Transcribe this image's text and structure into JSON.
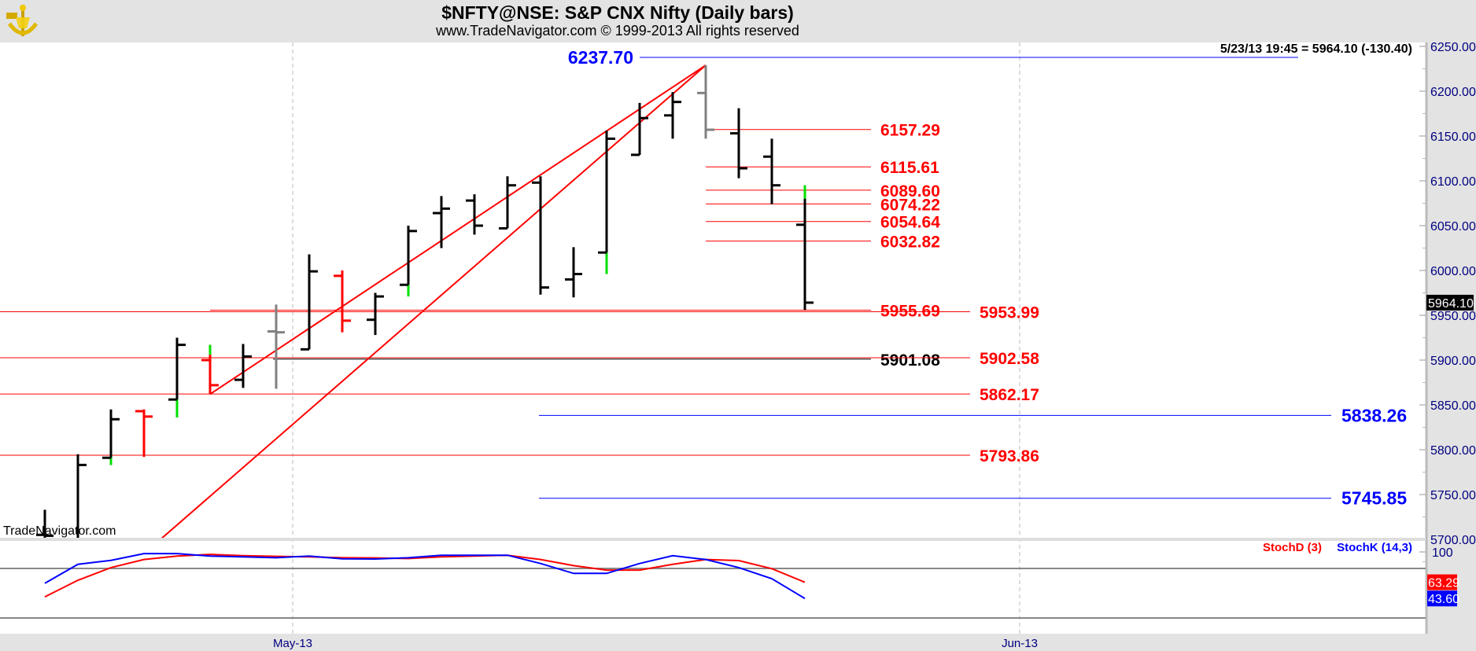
{
  "header": {
    "title": "$NFTY@NSE:  S&P CNX Nifty  (Daily bars)",
    "subtitle": "www.TradeNavigator.com © 1999-2013 All rights reserved",
    "logo_icon": "sextant-anchor-logo"
  },
  "info_readout": "5/23/13 19:45 = 5964.10 (-130.40)",
  "watermark": "TradeNavigator.com",
  "colors": {
    "up_bar": "#000000",
    "down_bar": "#ff0000",
    "neutral_bar": "#808080",
    "accent": "#00e000",
    "level_red": "#ff0000",
    "level_blue": "#0000ff",
    "axis_text": "#000080",
    "background": "#ffffff",
    "frame": "#e3e3e3"
  },
  "chart_data": [
    {
      "type": "ohlc",
      "title": "$NFTY@NSE:  S&P CNX Nifty  (Daily bars)",
      "ylim": [
        5690,
        6260
      ],
      "y_ticks": [
        "6250.00",
        "6200.00",
        "6150.00",
        "6100.00",
        "6050.00",
        "6000.00",
        "5950.00",
        "5900.00",
        "5850.00",
        "5800.00",
        "5750.00",
        "5700.00"
      ],
      "y_tick_values": [
        6250,
        6200,
        6150,
        6100,
        6050,
        6000,
        5950,
        5900,
        5850,
        5800,
        5750,
        5700
      ],
      "x_ticks": [
        {
          "label": "May-13",
          "at_bar": 7.5
        },
        {
          "label": "Jun-13",
          "at_bar": 29.5
        }
      ],
      "grid": "vertical dashed at month starts",
      "last_price_badge": "5964.10",
      "bars": [
        {
          "o": 5705,
          "h": 5733,
          "l": 5690,
          "c": 5704,
          "color": "up"
        },
        {
          "o": 5690,
          "h": 5795,
          "l": 5685,
          "c": 5783,
          "color": "up"
        },
        {
          "o": 5791,
          "h": 5845,
          "l": 5783,
          "c": 5834,
          "color": "up",
          "accent": [
            5783,
            5791
          ]
        },
        {
          "o": 5843,
          "h": 5845,
          "l": 5792,
          "c": 5837,
          "color": "down"
        },
        {
          "o": 5856,
          "h": 5925,
          "l": 5836,
          "c": 5917,
          "color": "up",
          "accent": [
            5836,
            5856
          ]
        },
        {
          "o": 5900,
          "h": 5917,
          "l": 5862,
          "c": 5872,
          "color": "down",
          "accent": [
            5906,
            5917
          ]
        },
        {
          "o": 5878,
          "h": 5918,
          "l": 5869,
          "c": 5904,
          "color": "up"
        },
        {
          "o": 5932,
          "h": 5962,
          "l": 5868,
          "c": 5931,
          "color": "neutral"
        },
        {
          "o": 5912,
          "h": 6018,
          "l": 5912,
          "c": 5999,
          "color": "up"
        },
        {
          "o": 5994,
          "h": 6000,
          "l": 5931,
          "c": 5944,
          "color": "down"
        },
        {
          "o": 5945,
          "h": 5975,
          "l": 5928,
          "c": 5971,
          "color": "up"
        },
        {
          "o": 5984,
          "h": 6050,
          "l": 5971,
          "c": 6044,
          "color": "up",
          "accent": [
            5971,
            5984
          ]
        },
        {
          "o": 6064,
          "h": 6083,
          "l": 6025,
          "c": 6069,
          "color": "up"
        },
        {
          "o": 6078,
          "h": 6085,
          "l": 6040,
          "c": 6050,
          "color": "up"
        },
        {
          "o": 6047,
          "h": 6105,
          "l": 6047,
          "c": 6095,
          "color": "up"
        },
        {
          "o": 6098,
          "h": 6105,
          "l": 5973,
          "c": 5981,
          "color": "up"
        },
        {
          "o": 5990,
          "h": 6026,
          "l": 5970,
          "c": 5996,
          "color": "up"
        },
        {
          "o": 6020,
          "h": 6156,
          "l": 5996,
          "c": 6147,
          "color": "up",
          "accent": [
            5996,
            6020
          ]
        },
        {
          "o": 6129,
          "h": 6187,
          "l": 6129,
          "c": 6170,
          "color": "up"
        },
        {
          "o": 6173,
          "h": 6199,
          "l": 6147,
          "c": 6188,
          "color": "up"
        },
        {
          "o": 6198,
          "h": 6229,
          "l": 6147,
          "c": 6157,
          "color": "neutral"
        },
        {
          "o": 6153,
          "h": 6181,
          "l": 6103,
          "c": 6114,
          "color": "up"
        },
        {
          "o": 6127,
          "h": 6147,
          "l": 6074,
          "c": 6095,
          "color": "up"
        },
        {
          "o": 6051,
          "h": 6095,
          "l": 5956,
          "c": 5964.1,
          "color": "up",
          "accent": [
            6080,
            6095
          ]
        }
      ],
      "trendlines": [
        {
          "from": {
            "bar": 5,
            "price": 5862
          },
          "to": {
            "bar": 20,
            "price": 6229
          }
        },
        {
          "from": {
            "bar": 3.5,
            "price": 5700
          },
          "to": {
            "bar": 20,
            "price": 6229
          }
        }
      ],
      "levels": [
        {
          "label": "6237.70",
          "value": 6237.7,
          "group": "peak",
          "color": "blue"
        },
        {
          "label": "6157.29",
          "value": 6157.29,
          "group": "short",
          "color": "red"
        },
        {
          "label": "6115.61",
          "value": 6115.61,
          "group": "short",
          "color": "red"
        },
        {
          "label": "6089.60",
          "value": 6089.6,
          "group": "short",
          "color": "red"
        },
        {
          "label": "6074.22",
          "value": 6074.22,
          "group": "short",
          "color": "red"
        },
        {
          "label": "6054.64",
          "value": 6054.64,
          "group": "short",
          "color": "red"
        },
        {
          "label": "6032.82",
          "value": 6032.82,
          "group": "short",
          "color": "red"
        },
        {
          "label": "5955.69",
          "value": 5955.69,
          "group": "mid",
          "color": "red"
        },
        {
          "label": "5901.08",
          "value": 5901.08,
          "group": "mid",
          "color": "black"
        },
        {
          "label": "5953.99",
          "value": 5953.99,
          "group": "full",
          "color": "red"
        },
        {
          "label": "5902.58",
          "value": 5902.58,
          "group": "full",
          "color": "red"
        },
        {
          "label": "5862.17",
          "value": 5862.17,
          "group": "full",
          "color": "red"
        },
        {
          "label": "5793.86",
          "value": 5793.86,
          "group": "full",
          "color": "red"
        },
        {
          "label": "5838.26",
          "value": 5838.26,
          "group": "projection",
          "color": "blue"
        },
        {
          "label": "5745.85",
          "value": 5745.85,
          "group": "projection",
          "color": "blue"
        }
      ]
    },
    {
      "type": "line",
      "ylim": [
        0,
        100
      ],
      "y_ticks": [
        "100"
      ],
      "reference_lines": [
        80,
        20
      ],
      "series": [
        {
          "name": "StochD (3)",
          "color": "#ff0000",
          "last_label": "63.29",
          "values": [
            45.6,
            65.7,
            81,
            90.8,
            95,
            97,
            95.5,
            94.6,
            94,
            93,
            92.7,
            92,
            94,
            95,
            96,
            90.8,
            83.5,
            78,
            78,
            85,
            90.8,
            89.5,
            79.7,
            63.29
          ]
        },
        {
          "name": "StochK (14,3)",
          "color": "#0000ff",
          "last_label": "43.60",
          "values": [
            62,
            85,
            89.8,
            98,
            98,
            95,
            94,
            93,
            95,
            91.7,
            91.4,
            93,
            96,
            96,
            96,
            86,
            74,
            74,
            86,
            95.5,
            90.8,
            81,
            67.6,
            43.6
          ]
        }
      ]
    }
  ]
}
